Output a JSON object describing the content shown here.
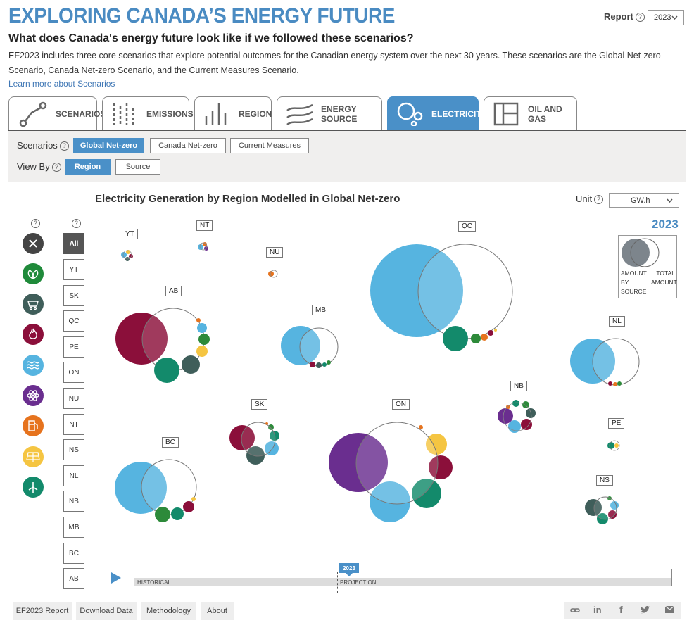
{
  "header": {
    "app_title": "EXPLORING CANADA’S ENERGY FUTURE",
    "report_label": "Report",
    "report_select": "2023",
    "headline": "What does Canada's energy future look like if we followed these scenarios?",
    "intro": "EF2023 includes three core scenarios that explore potential outcomes for the Canadian energy system over the next 30 years. These scenarios are the Global Net-zero Scenario, Canada Net-zero Scenario, and the Current Measures Scenario.",
    "learn_more": "Learn more about Scenarios"
  },
  "tabs": [
    {
      "label": "SCENARIOS",
      "icon": "scenarios-icon",
      "active": false
    },
    {
      "label": "EMISSIONS",
      "icon": "emissions-icon",
      "active": false
    },
    {
      "label": "REGION",
      "icon": "region-icon",
      "active": false
    },
    {
      "label": "ENERGY SOURCE",
      "icon": "energy-source-icon",
      "active": false
    },
    {
      "label": "ELECTRICITY",
      "icon": "electricity-icon",
      "active": true
    },
    {
      "label": "OIL AND GAS",
      "icon": "oil-gas-icon",
      "active": false
    }
  ],
  "filters": {
    "scenarios_label": "Scenarios",
    "scenarios": [
      "Global Net-zero",
      "Canada Net-zero",
      "Current Measures"
    ],
    "view_by_label": "View By",
    "view_by": [
      "Region",
      "Source"
    ]
  },
  "chart": {
    "title": "Electricity Generation by Region Modelled in Global Net-zero",
    "unit_label": "Unit",
    "unit_value": "GW.h",
    "year": "2023",
    "legend": {
      "left": "AMOUNT BY SOURCE",
      "right": "TOTAL AMOUNT"
    }
  },
  "sources": [
    {
      "name": "clear",
      "icon": "close-icon",
      "color": "#444444"
    },
    {
      "name": "biomass",
      "icon": "leaf-icon",
      "color": "#1f8a3a"
    },
    {
      "name": "coal",
      "icon": "coal-cart-icon",
      "color": "#3f5e5a"
    },
    {
      "name": "natural gas",
      "icon": "flame-icon",
      "color": "#8b0f3a"
    },
    {
      "name": "hydro",
      "icon": "wave-icon",
      "color": "#56b4e0"
    },
    {
      "name": "nuclear",
      "icon": "atom-icon",
      "color": "#6a2e8f"
    },
    {
      "name": "oil",
      "icon": "fuel-pump-icon",
      "color": "#e6731e"
    },
    {
      "name": "solar",
      "icon": "solar-panel-icon",
      "color": "#f5c542"
    },
    {
      "name": "wind",
      "icon": "wind-turbine-icon",
      "color": "#138a6b"
    }
  ],
  "regions_list": [
    "All",
    "YT",
    "SK",
    "QC",
    "PE",
    "ON",
    "NU",
    "NT",
    "NS",
    "NL",
    "NB",
    "MB",
    "BC",
    "AB"
  ],
  "timeline": {
    "historical": "HISTORICAL",
    "projection": "PROJECTION",
    "marker": "2023"
  },
  "footer": {
    "buttons": [
      "EF2023 Report",
      "Download Data",
      "Methodology",
      "About"
    ],
    "share_icons": [
      "link-icon",
      "linkedin-icon",
      "facebook-icon",
      "twitter-icon",
      "email-icon"
    ]
  },
  "colors": {
    "accent": "#4a90c8",
    "hydro": "#56b4e0",
    "gas": "#8b0f3a",
    "nuclear": "#6a2e8f",
    "wind": "#138a6b",
    "coal": "#3f5e5a",
    "solar": "#f5c542",
    "biomass": "#2d8a3a",
    "oil": "#e6731e"
  }
}
